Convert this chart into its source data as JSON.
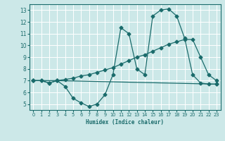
{
  "xlabel": "Humidex (Indice chaleur)",
  "bg_color": "#cce8e8",
  "grid_color": "#ffffff",
  "line_color": "#1a6b6b",
  "xlim": [
    -0.5,
    23.5
  ],
  "ylim": [
    4.5,
    13.5
  ],
  "xticks": [
    0,
    1,
    2,
    3,
    4,
    5,
    6,
    7,
    8,
    9,
    10,
    11,
    12,
    13,
    14,
    15,
    16,
    17,
    18,
    19,
    20,
    21,
    22,
    23
  ],
  "yticks": [
    5,
    6,
    7,
    8,
    9,
    10,
    11,
    12,
    13
  ],
  "line_wavy_x": [
    0,
    1,
    2,
    3,
    4,
    5,
    6,
    7,
    8,
    9,
    10,
    11,
    12,
    13,
    14,
    15,
    16,
    17,
    18,
    19,
    20,
    21,
    22,
    23
  ],
  "line_wavy_y": [
    7.0,
    7.0,
    6.8,
    7.0,
    6.5,
    5.5,
    5.1,
    4.8,
    5.0,
    5.8,
    7.5,
    11.5,
    11.0,
    8.0,
    7.5,
    12.5,
    13.0,
    13.1,
    12.5,
    10.6,
    7.5,
    6.8,
    6.7,
    6.7
  ],
  "line_flat_x": [
    0,
    1,
    2,
    3,
    23
  ],
  "line_flat_y": [
    7.0,
    7.0,
    6.8,
    7.0,
    6.7
  ],
  "line_rise_x": [
    0,
    3,
    4,
    5,
    6,
    7,
    8,
    9,
    10,
    11,
    12,
    13,
    14,
    15,
    16,
    17,
    18,
    19,
    20,
    21,
    22,
    23
  ],
  "line_rise_y": [
    7.0,
    7.0,
    7.1,
    7.2,
    7.4,
    7.5,
    7.7,
    7.9,
    8.1,
    8.4,
    8.7,
    9.0,
    9.2,
    9.5,
    9.8,
    10.1,
    10.3,
    10.5,
    10.5,
    9.0,
    7.5,
    7.0
  ],
  "marker": "D",
  "markersize": 2.5,
  "linewidth": 0.9
}
